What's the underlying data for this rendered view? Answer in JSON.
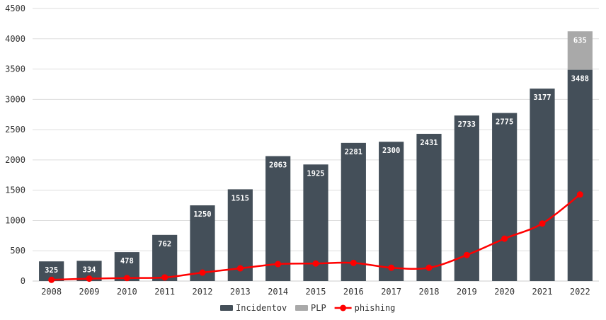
{
  "chart_data": {
    "type": "bar",
    "categories": [
      "2008",
      "2009",
      "2010",
      "2011",
      "2012",
      "2013",
      "2014",
      "2015",
      "2016",
      "2017",
      "2018",
      "2019",
      "2020",
      "2021",
      "2022"
    ],
    "series": [
      {
        "name": "Incidentov",
        "kind": "bar",
        "stack": "main",
        "values": [
          325,
          334,
          478,
          762,
          1250,
          1515,
          2063,
          1925,
          2281,
          2300,
          2431,
          2733,
          2775,
          3177,
          3488
        ]
      },
      {
        "name": "PLP",
        "kind": "bar",
        "stack": "main",
        "values": [
          0,
          0,
          0,
          0,
          0,
          0,
          0,
          0,
          0,
          0,
          0,
          0,
          0,
          0,
          635
        ]
      },
      {
        "name": "phishing",
        "kind": "line",
        "values": [
          20,
          40,
          50,
          60,
          140,
          210,
          280,
          290,
          300,
          220,
          220,
          430,
          700,
          950,
          1430
        ]
      }
    ],
    "ylim": [
      0,
      4500
    ],
    "yticks": [
      0,
      500,
      1000,
      1500,
      2000,
      2500,
      3000,
      3500,
      4000,
      4500
    ],
    "grid": true,
    "legend": "bottom-center"
  },
  "colors": {
    "Incidentov": "#444f59",
    "PLP": "#a9a9a9",
    "phishing": "#ff0000"
  }
}
